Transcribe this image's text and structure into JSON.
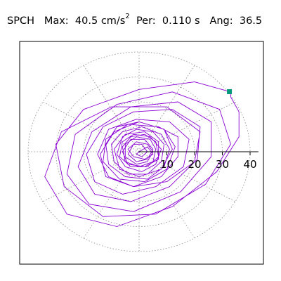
{
  "header": {
    "station": "SPCH",
    "max_label": "Max:",
    "max_value": "40.5",
    "max_unit_base": "cm/s",
    "max_unit_exp": "2",
    "per_label": "Per:",
    "per_value": "0.110 s",
    "ang_label": "Ang:",
    "ang_value": "36.5"
  },
  "chart_data": {
    "type": "polar-particle-motion",
    "radial_axis": {
      "ticks": [
        10,
        20,
        30,
        40
      ],
      "tick_labels": [
        "10",
        "20",
        "30",
        "40"
      ],
      "max": 43
    },
    "grid": {
      "rings": [
        10,
        20,
        30,
        40
      ],
      "spokes_deg": [
        0,
        30,
        60,
        90,
        120,
        150,
        180,
        210,
        240,
        270,
        300,
        330
      ],
      "style": "dotted"
    },
    "max_amplitude": 40.5,
    "max_angle_deg": 36.5,
    "trace_color": "#8a00d4",
    "marker_color": "#00997a",
    "trace": [
      [
        0,
        0
      ],
      [
        3,
        2
      ],
      [
        5,
        -1
      ],
      [
        2,
        -3
      ],
      [
        -2,
        -2
      ],
      [
        -4,
        1
      ],
      [
        -1,
        4
      ],
      [
        3,
        3
      ],
      [
        5,
        0
      ],
      [
        3,
        -4
      ],
      [
        -1,
        -5
      ],
      [
        -5,
        -2
      ],
      [
        -5,
        3
      ],
      [
        -1,
        6
      ],
      [
        4,
        5
      ],
      [
        6,
        1
      ],
      [
        5,
        -4
      ],
      [
        0,
        -6
      ],
      [
        -5,
        -4
      ],
      [
        -6,
        2
      ],
      [
        -3,
        6
      ],
      [
        2,
        7
      ],
      [
        6,
        4
      ],
      [
        7,
        -2
      ],
      [
        3,
        -6
      ],
      [
        -3,
        -6
      ],
      [
        -7,
        -2
      ],
      [
        -6,
        4
      ],
      [
        -2,
        7
      ],
      [
        4,
        6
      ],
      [
        8,
        1
      ],
      [
        6,
        -5
      ],
      [
        1,
        -8
      ],
      [
        -5,
        -6
      ],
      [
        -8,
        -1
      ],
      [
        -6,
        6
      ],
      [
        -1,
        9
      ],
      [
        5,
        8
      ],
      [
        9,
        3
      ],
      [
        8,
        -4
      ],
      [
        3,
        -9
      ],
      [
        -4,
        -9
      ],
      [
        -9,
        -4
      ],
      [
        -10,
        3
      ],
      [
        -6,
        8
      ],
      [
        1,
        10
      ],
      [
        8,
        7
      ],
      [
        11,
        1
      ],
      [
        9,
        -6
      ],
      [
        3,
        -11
      ],
      [
        -5,
        -10
      ],
      [
        -11,
        -5
      ],
      [
        -12,
        3
      ],
      [
        -8,
        10
      ],
      [
        0,
        12
      ],
      [
        9,
        9
      ],
      [
        13,
        2
      ],
      [
        10,
        -7
      ],
      [
        2,
        -12
      ],
      [
        -7,
        -11
      ],
      [
        -13,
        -4
      ],
      [
        -12,
        5
      ],
      [
        -4,
        11
      ],
      [
        7,
        10
      ],
      [
        14,
        6
      ],
      [
        14,
        -2
      ],
      [
        8,
        -10
      ],
      [
        -2,
        -14
      ],
      [
        -11,
        -10
      ],
      [
        -15,
        -1
      ],
      [
        -11,
        9
      ],
      [
        -1,
        13
      ],
      [
        11,
        12
      ],
      [
        18,
        5
      ],
      [
        16,
        -6
      ],
      [
        6,
        -14
      ],
      [
        -6,
        -17
      ],
      [
        -16,
        -12
      ],
      [
        -19,
        -1
      ],
      [
        -13,
        10
      ],
      [
        -2,
        16
      ],
      [
        12,
        17
      ],
      [
        22,
        10
      ],
      [
        21,
        -3
      ],
      [
        11,
        -14
      ],
      [
        -3,
        -20
      ],
      [
        -16,
        -17
      ],
      [
        -22,
        -6
      ],
      [
        -17,
        8
      ],
      [
        -3,
        18
      ],
      [
        14,
        20
      ],
      [
        26,
        12
      ],
      [
        26,
        -2
      ],
      [
        15,
        -16
      ],
      [
        -2,
        -24
      ],
      [
        -18,
        -21
      ],
      [
        -26,
        -9
      ],
      [
        -23,
        7
      ],
      [
        -8,
        19
      ],
      [
        12,
        24
      ],
      [
        29,
        17
      ],
      [
        33,
        3
      ],
      [
        24,
        -13
      ],
      [
        6,
        -25
      ],
      [
        -13,
        -26
      ],
      [
        -27,
        -14
      ],
      [
        -30,
        3
      ],
      [
        -20,
        17
      ],
      [
        0,
        25
      ],
      [
        20,
        28
      ],
      [
        33,
        24
      ],
      [
        33,
        22
      ],
      [
        36,
        16
      ],
      [
        36,
        6
      ],
      [
        28,
        -8
      ],
      [
        12,
        -22
      ],
      [
        -8,
        -30
      ],
      [
        -26,
        -25
      ],
      [
        -34,
        -10
      ],
      [
        -28,
        8
      ],
      [
        -10,
        18
      ],
      [
        10,
        18
      ],
      [
        22,
        8
      ],
      [
        20,
        -4
      ],
      [
        10,
        -12
      ],
      [
        -2,
        -14
      ],
      [
        -12,
        -10
      ],
      [
        -14,
        -1
      ],
      [
        -9,
        8
      ],
      [
        0,
        12
      ],
      [
        9,
        9
      ],
      [
        12,
        1
      ],
      [
        8,
        -7
      ],
      [
        0,
        -10
      ],
      [
        -7,
        -7
      ],
      [
        -9,
        1
      ],
      [
        -5,
        7
      ],
      [
        2,
        8
      ],
      [
        7,
        4
      ],
      [
        7,
        -3
      ],
      [
        2,
        -6
      ],
      [
        -4,
        -5
      ],
      [
        -6,
        0
      ],
      [
        -3,
        5
      ],
      [
        2,
        5
      ],
      [
        5,
        1
      ],
      [
        3,
        -3
      ],
      [
        -1,
        -4
      ],
      [
        -4,
        -1
      ],
      [
        -2,
        3
      ],
      [
        1,
        3
      ],
      [
        3,
        0
      ],
      [
        1,
        -2
      ],
      [
        -1,
        -1
      ],
      [
        0,
        0
      ]
    ]
  }
}
